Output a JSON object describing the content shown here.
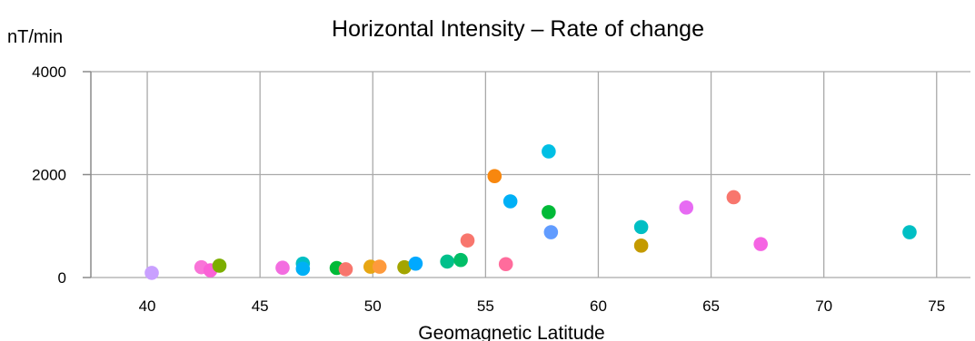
{
  "chart_data": {
    "type": "scatter",
    "title": "Horizontal Intensity – Rate of change",
    "ylabel": "nT/min",
    "xlabel": "Geomagnetic Latitude",
    "xlim": [
      37.5,
      76.5
    ],
    "ylim": [
      0,
      4000
    ],
    "xticks": [
      "40",
      "45",
      "50",
      "55",
      "60",
      "65",
      "70",
      "75"
    ],
    "yticks": [
      "0",
      "2000",
      "4000"
    ],
    "grid": true,
    "legend": "none",
    "points": [
      {
        "x": 40.2,
        "y": 90,
        "color": "#c9a0ff"
      },
      {
        "x": 42.4,
        "y": 200,
        "color": "#f974d8"
      },
      {
        "x": 42.8,
        "y": 140,
        "color": "#fb61d7"
      },
      {
        "x": 43.2,
        "y": 230,
        "color": "#7cae00"
      },
      {
        "x": 46.0,
        "y": 190,
        "color": "#f36de0"
      },
      {
        "x": 46.9,
        "y": 270,
        "color": "#00bfc4"
      },
      {
        "x": 46.9,
        "y": 170,
        "color": "#00b0f6"
      },
      {
        "x": 48.4,
        "y": 185,
        "color": "#00ba38"
      },
      {
        "x": 48.8,
        "y": 160,
        "color": "#f8766d"
      },
      {
        "x": 49.9,
        "y": 210,
        "color": "#e7a613"
      },
      {
        "x": 50.3,
        "y": 210,
        "color": "#fe9a3c"
      },
      {
        "x": 51.4,
        "y": 200,
        "color": "#a3a500"
      },
      {
        "x": 51.9,
        "y": 270,
        "color": "#00a9ff"
      },
      {
        "x": 53.3,
        "y": 310,
        "color": "#00c08b"
      },
      {
        "x": 53.9,
        "y": 340,
        "color": "#00be67"
      },
      {
        "x": 54.2,
        "y": 720,
        "color": "#f8766d"
      },
      {
        "x": 55.4,
        "y": 1970,
        "color": "#f8870e"
      },
      {
        "x": 55.9,
        "y": 260,
        "color": "#ff6c9c"
      },
      {
        "x": 56.1,
        "y": 1480,
        "color": "#00b0f6"
      },
      {
        "x": 57.8,
        "y": 2450,
        "color": "#00bfe4"
      },
      {
        "x": 57.8,
        "y": 1270,
        "color": "#00ba38"
      },
      {
        "x": 57.9,
        "y": 880,
        "color": "#619cff"
      },
      {
        "x": 61.9,
        "y": 980,
        "color": "#00bfc4"
      },
      {
        "x": 61.9,
        "y": 620,
        "color": "#c49a00"
      },
      {
        "x": 63.9,
        "y": 1360,
        "color": "#e76bf3"
      },
      {
        "x": 66.0,
        "y": 1560,
        "color": "#f8766d"
      },
      {
        "x": 67.2,
        "y": 650,
        "color": "#f564e3"
      },
      {
        "x": 73.8,
        "y": 880,
        "color": "#00bfc4"
      }
    ]
  }
}
